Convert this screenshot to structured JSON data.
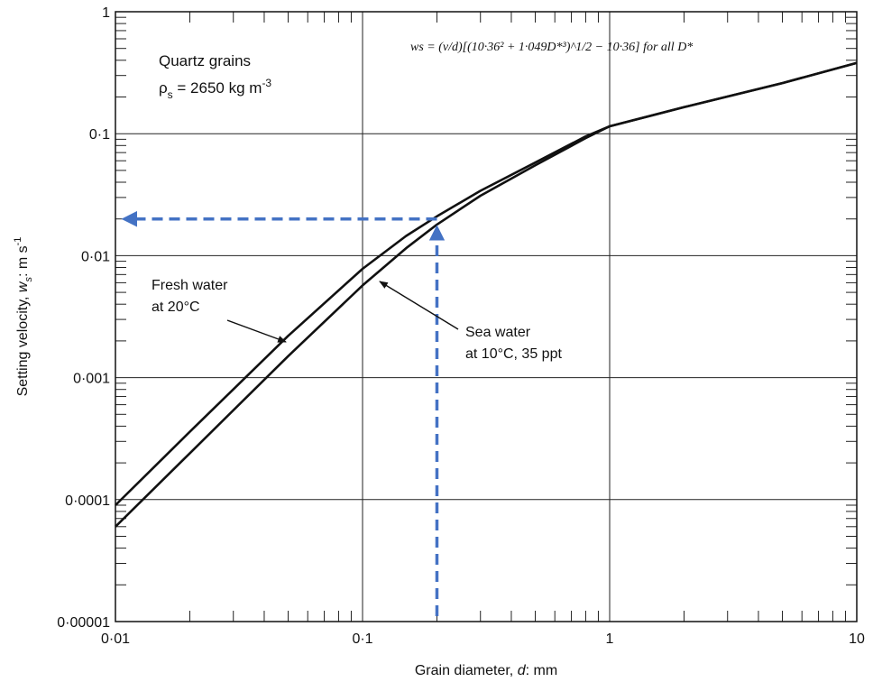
{
  "chart_data": {
    "type": "line",
    "x_scale": "log",
    "y_scale": "log",
    "xlim": [
      0.01,
      10
    ],
    "ylim": [
      1e-05,
      1
    ],
    "xlabel": "Grain diameter, d: mm",
    "ylabel": "Setting velocity, w_s: m s^-1",
    "xlabel_parts": {
      "text": "Grain diameter, ",
      "var": "d",
      "unit": ": mm"
    },
    "ylabel_parts": {
      "text": "Setting velocity, ",
      "var": "w",
      "sub": "s",
      "unit": ": m s",
      "sup": "-1"
    },
    "x_ticks": [
      {
        "value": 0.01,
        "label": "0·01"
      },
      {
        "value": 0.1,
        "label": "0·1"
      },
      {
        "value": 1,
        "label": "1"
      },
      {
        "value": 10,
        "label": "10"
      }
    ],
    "y_ticks": [
      {
        "value": 1e-05,
        "label": "0·00001"
      },
      {
        "value": 0.0001,
        "label": "0·0001"
      },
      {
        "value": 0.001,
        "label": "0·001"
      },
      {
        "value": 0.01,
        "label": "0·01"
      },
      {
        "value": 0.1,
        "label": "0·1"
      },
      {
        "value": 1,
        "label": "1"
      }
    ],
    "grid": true,
    "series": [
      {
        "name": "Fresh water at 20°C",
        "x": [
          0.01,
          0.02,
          0.05,
          0.1,
          0.15,
          0.2,
          0.3,
          0.5,
          0.8,
          1,
          2,
          5,
          10
        ],
        "y": [
          9e-05,
          0.00036,
          0.0022,
          0.0078,
          0.0145,
          0.021,
          0.034,
          0.058,
          0.095,
          0.115,
          0.165,
          0.26,
          0.38
        ]
      },
      {
        "name": "Sea water at 10°C, 35 ppt",
        "x": [
          0.01,
          0.02,
          0.05,
          0.1,
          0.15,
          0.2,
          0.3,
          0.5,
          0.8,
          1,
          2,
          5,
          10
        ],
        "y": [
          6e-05,
          0.00024,
          0.0015,
          0.0057,
          0.0115,
          0.018,
          0.031,
          0.055,
          0.092,
          0.115,
          0.165,
          0.26,
          0.38
        ]
      }
    ],
    "text_block": {
      "line1": "Quartz grains",
      "line2_symbol": "ρ",
      "line2_sub": "s",
      "line2_rest": " = 2650 kg m",
      "line2_sup": "-3"
    },
    "formula": "ws = (ν/d)[(10·36² + 1·049D*³)^1/2 − 10·36]  for all D*",
    "annotations": [
      {
        "lines": [
          "Fresh water",
          "at 20°C"
        ],
        "arrow_target": [
          0.06,
          0.0028
        ]
      },
      {
        "lines": [
          "Sea water",
          "at 10°C, 35 ppt"
        ],
        "arrow_target": [
          0.12,
          0.007
        ]
      }
    ],
    "guide_lines": {
      "color": "#4472C4",
      "x_value": 0.2,
      "y_value": 0.02
    }
  }
}
